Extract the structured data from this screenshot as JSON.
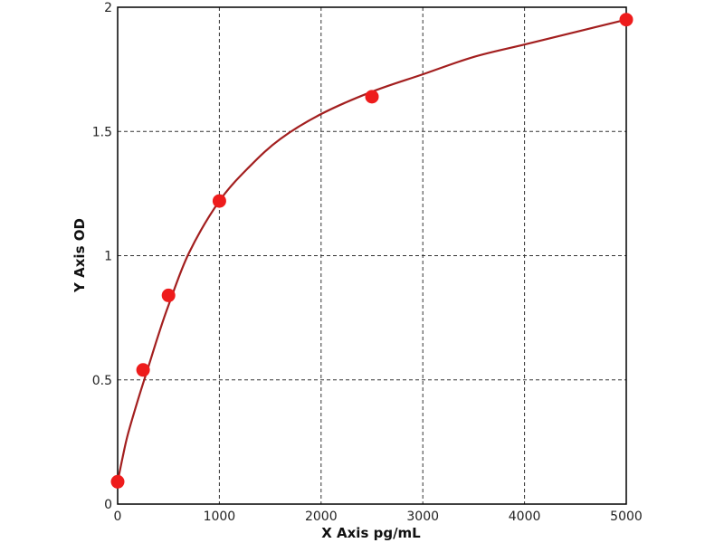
{
  "colors": {
    "curve": "#a31f1f",
    "points": "#ee1c1c",
    "grid": "#333333",
    "axes": "#000000"
  },
  "chart_data": {
    "type": "scatter",
    "title": "",
    "xlabel": "X Axis pg/mL",
    "ylabel": "Y Axis OD",
    "xlim": [
      0,
      5000
    ],
    "ylim": [
      0,
      2
    ],
    "grid": true,
    "grid_style": "dashed",
    "x_ticks": [
      0,
      1000,
      2000,
      3000,
      4000,
      5000
    ],
    "x_tick_labels": [
      "0",
      "1000",
      "2000",
      "3000",
      "4000",
      "5000"
    ],
    "y_ticks": [
      0,
      0.5,
      1,
      1.5,
      2
    ],
    "y_tick_labels": [
      "0",
      "0.5",
      "1",
      "1.5",
      "2"
    ],
    "series": [
      {
        "kind": "points",
        "x": [
          0,
          250,
          500,
          1000,
          2500,
          5000
        ],
        "y": [
          0.09,
          0.54,
          0.84,
          1.22,
          1.64,
          1.95
        ]
      },
      {
        "kind": "fitted-curve",
        "x": [
          0,
          50,
          100,
          200,
          300,
          400,
          500,
          700,
          1000,
          1300,
          1600,
          2000,
          2500,
          3000,
          3500,
          4000,
          4500,
          5000
        ],
        "y": [
          0.09,
          0.19,
          0.28,
          0.42,
          0.55,
          0.68,
          0.8,
          1.01,
          1.22,
          1.36,
          1.47,
          1.57,
          1.66,
          1.73,
          1.8,
          1.85,
          1.9,
          1.95
        ]
      }
    ]
  }
}
